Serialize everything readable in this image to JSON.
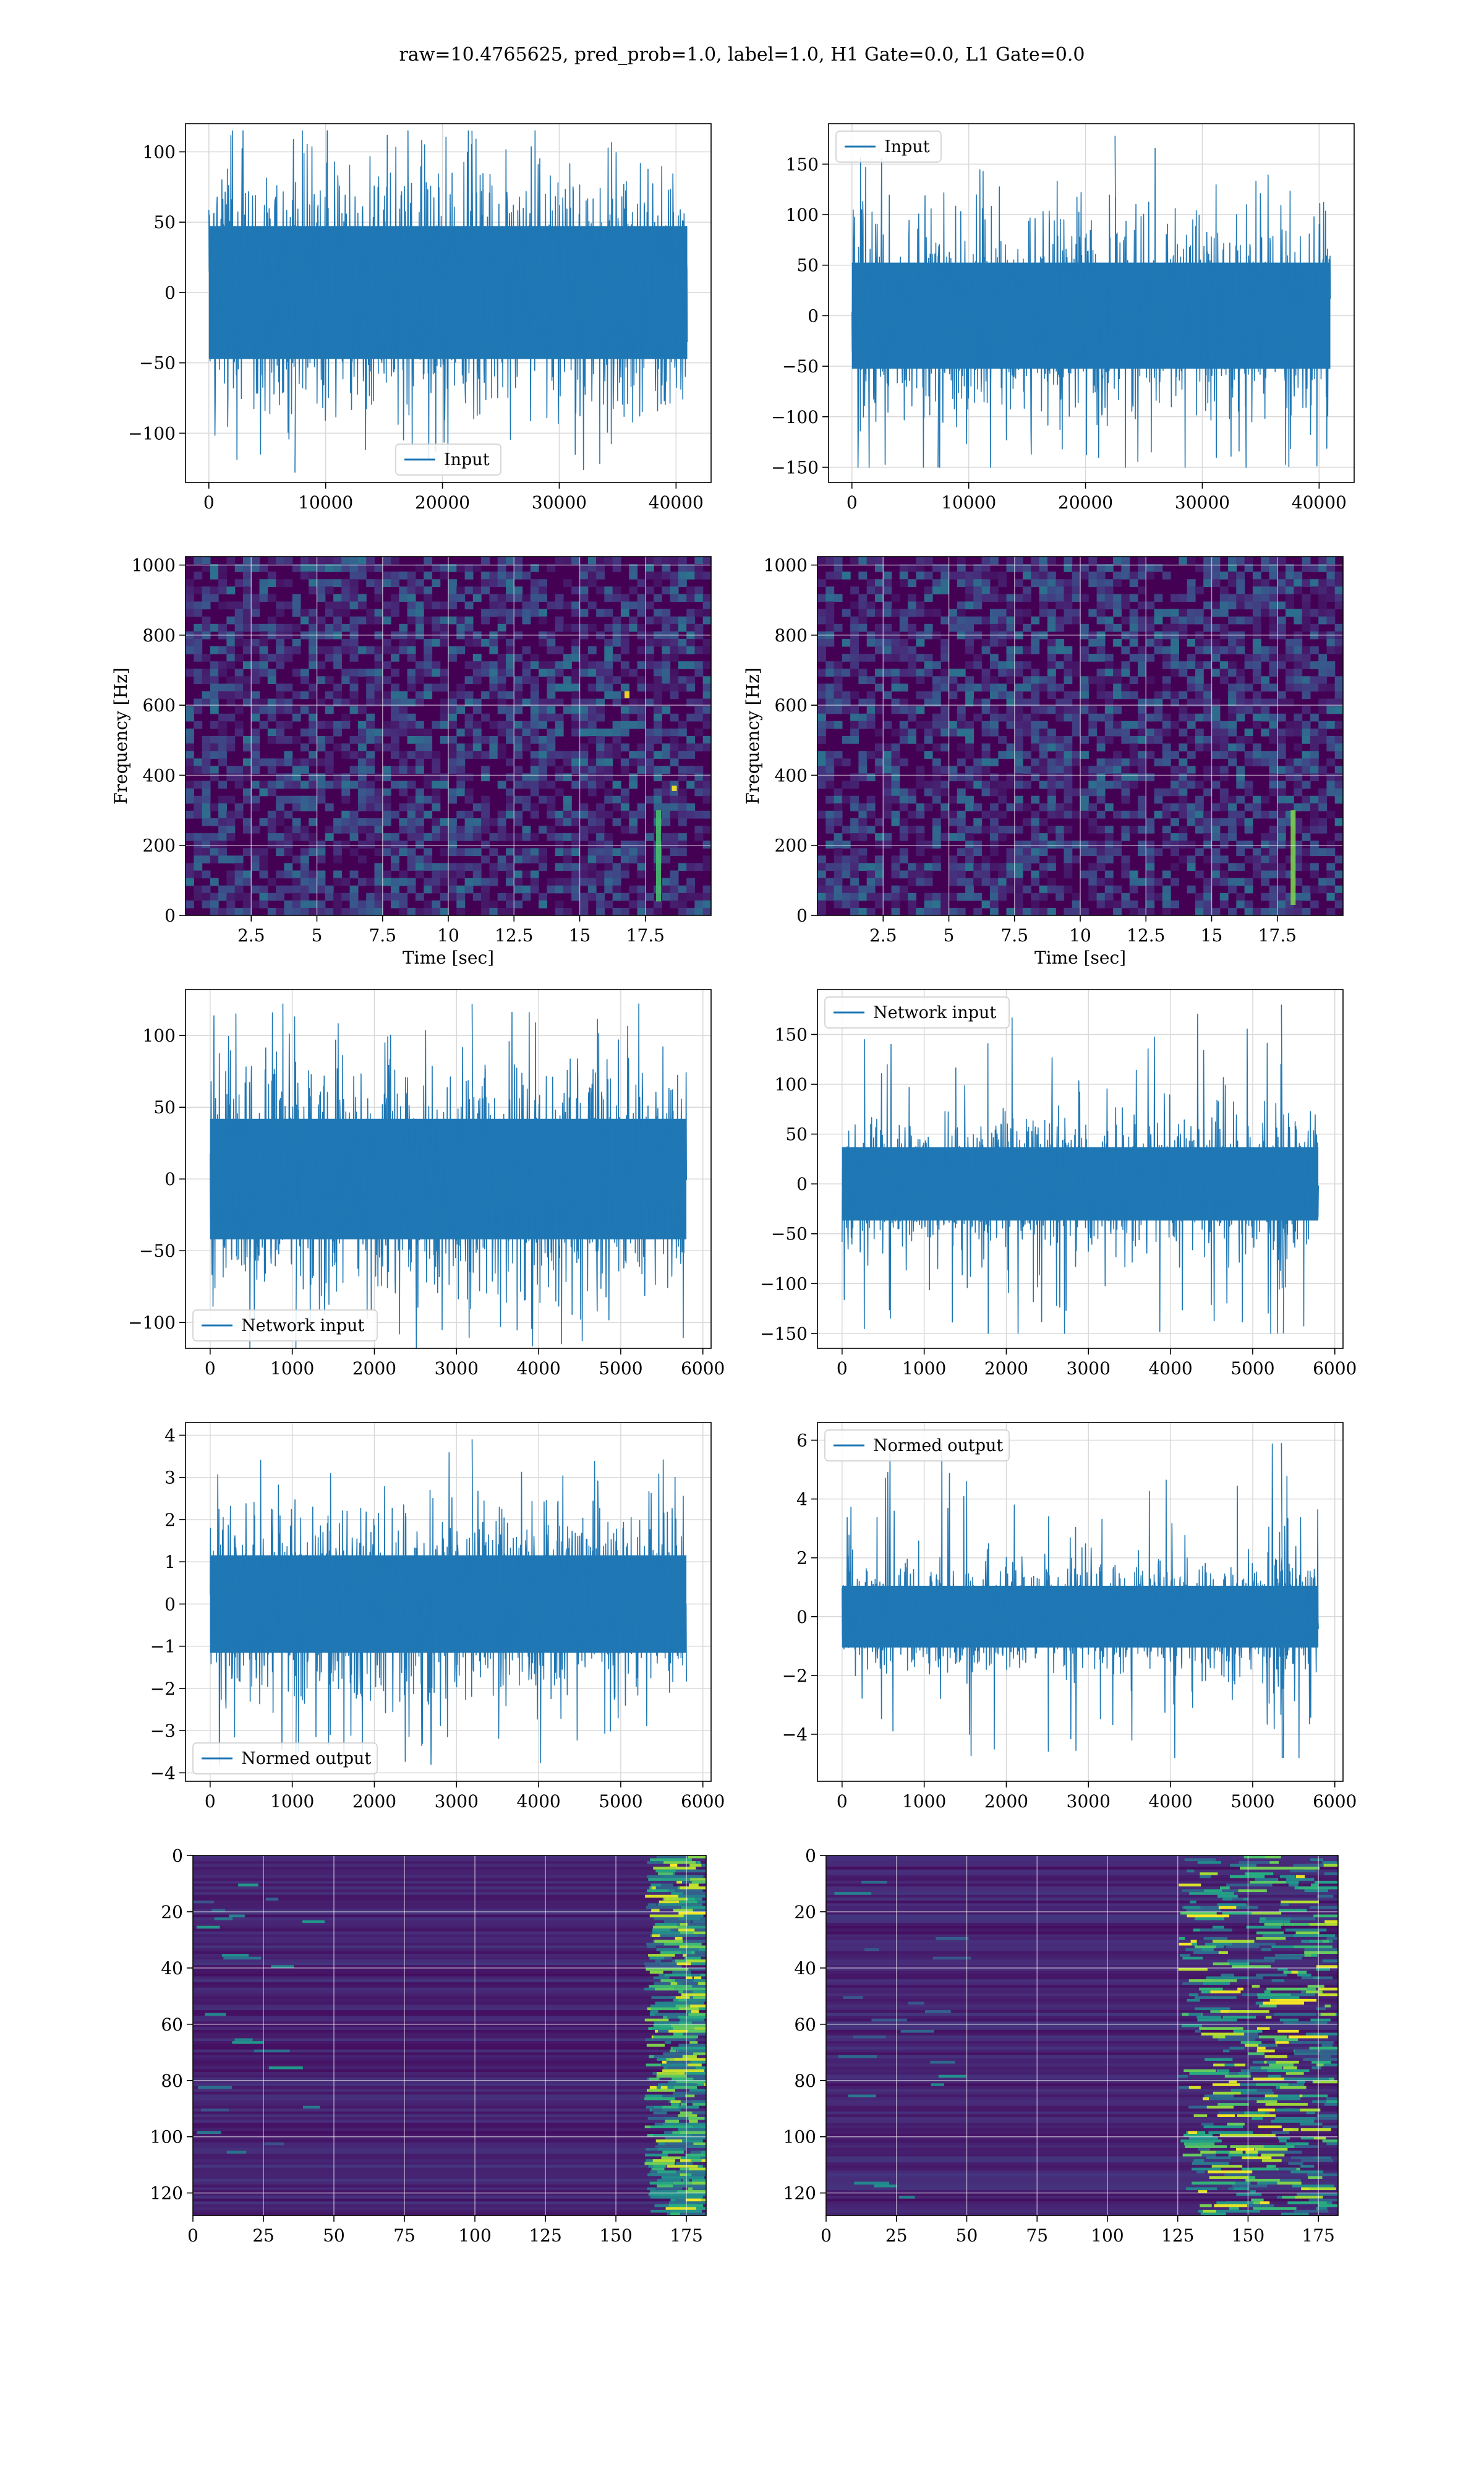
{
  "figure": {
    "suptitle": "raw=10.4765625, pred_prob=1.0, label=1.0, H1 Gate=0.0, L1 Gate=0.0",
    "colors": {
      "line": "#1f77b4",
      "grid": "#d9d9d9",
      "viridis": [
        "#440154",
        "#472c7a",
        "#3b518b",
        "#2c718e",
        "#21908d",
        "#27ad81",
        "#5cc863",
        "#aadc32",
        "#fde725"
      ]
    }
  },
  "chart_data": [
    {
      "type": "line",
      "legend": "Input",
      "legend_loc": "lower center",
      "xlim": [
        -2000,
        43000
      ],
      "ylim": [
        -135,
        120
      ],
      "xticks": [
        0,
        10000,
        20000,
        30000,
        40000
      ],
      "yticks": [
        -100,
        -50,
        0,
        50,
        100
      ],
      "x_range": [
        0,
        40960
      ],
      "band": [
        -45,
        45
      ],
      "spike_max": 115,
      "spike_min": -128,
      "grid": true
    },
    {
      "type": "line",
      "legend": "Input",
      "legend_loc": "upper left",
      "xlim": [
        -2000,
        43000
      ],
      "ylim": [
        -165,
        190
      ],
      "xticks": [
        0,
        10000,
        20000,
        30000,
        40000
      ],
      "yticks": [
        -150,
        -100,
        -50,
        0,
        50,
        100,
        150
      ],
      "x_range": [
        0,
        40960
      ],
      "band": [
        -50,
        50
      ],
      "spike_max": 178,
      "spike_min": -150,
      "grid": true
    },
    {
      "type": "heatmap",
      "xlabel": "Time [sec]",
      "ylabel": "Frequency [Hz]",
      "xlim": [
        0,
        20
      ],
      "ylim": [
        0,
        1024
      ],
      "xticks": [
        2.5,
        5.0,
        7.5,
        10.0,
        12.5,
        15.0,
        17.5
      ],
      "yticks": [
        0,
        200,
        400,
        600,
        800,
        1000
      ],
      "colormap": "viridis",
      "hotspots": [
        {
          "t": 18.0,
          "f_low": 40,
          "f_high": 300,
          "level": 0.7
        },
        {
          "t": 16.8,
          "f_low": 620,
          "f_high": 640,
          "level": 1.0
        },
        {
          "t": 18.6,
          "f_low": 355,
          "f_high": 370,
          "level": 1.0
        }
      ]
    },
    {
      "type": "heatmap",
      "xlabel": "Time [sec]",
      "ylabel": "Frequency [Hz]",
      "xlim": [
        0,
        20
      ],
      "ylim": [
        0,
        1024
      ],
      "xticks": [
        2.5,
        5.0,
        7.5,
        10.0,
        12.5,
        15.0,
        17.5
      ],
      "yticks": [
        0,
        200,
        400,
        600,
        800,
        1000
      ],
      "colormap": "viridis",
      "hotspots": [
        {
          "t": 18.1,
          "f_low": 30,
          "f_high": 300,
          "level": 0.8
        }
      ]
    },
    {
      "type": "line",
      "legend": "Network input",
      "legend_loc": "lower left",
      "xlim": [
        -300,
        6100
      ],
      "ylim": [
        -118,
        132
      ],
      "xticks": [
        0,
        1000,
        2000,
        3000,
        4000,
        5000,
        6000
      ],
      "yticks": [
        -100,
        -50,
        0,
        50,
        100
      ],
      "x_range": [
        0,
        5800
      ],
      "band": [
        -40,
        40
      ],
      "spike_max": 122,
      "spike_min": -120,
      "grid": true
    },
    {
      "type": "line",
      "legend": "Network input",
      "legend_loc": "upper left",
      "xlim": [
        -300,
        6100
      ],
      "ylim": [
        -165,
        195
      ],
      "xticks": [
        0,
        1000,
        2000,
        3000,
        4000,
        5000,
        6000
      ],
      "yticks": [
        -150,
        -100,
        -50,
        0,
        50,
        100,
        150
      ],
      "x_range": [
        0,
        5800
      ],
      "band": [
        -35,
        35
      ],
      "spike_max": 180,
      "spike_min": -150,
      "burst_x": 5350,
      "grid": true
    },
    {
      "type": "line",
      "legend": "Normed output",
      "legend_loc": "lower left",
      "xlim": [
        -300,
        6100
      ],
      "ylim": [
        -4.2,
        4.3
      ],
      "xticks": [
        0,
        1000,
        2000,
        3000,
        4000,
        5000,
        6000
      ],
      "yticks": [
        -4,
        -3,
        -2,
        -1,
        0,
        1,
        2,
        3,
        4
      ],
      "x_range": [
        0,
        5800
      ],
      "band": [
        -1.1,
        1.1
      ],
      "spike_max": 3.9,
      "spike_min": -3.8,
      "grid": true
    },
    {
      "type": "line",
      "legend": "Normed output",
      "legend_loc": "upper left",
      "xlim": [
        -300,
        6100
      ],
      "ylim": [
        -5.6,
        6.6
      ],
      "xticks": [
        0,
        1000,
        2000,
        3000,
        4000,
        5000,
        6000
      ],
      "yticks": [
        -4,
        -2,
        0,
        2,
        4,
        6
      ],
      "x_range": [
        0,
        5800
      ],
      "band": [
        -1.0,
        1.0
      ],
      "spike_max": 5.9,
      "spike_min": -4.8,
      "burst_x": 5350,
      "grid": true
    },
    {
      "type": "heatmap",
      "xlim": [
        0,
        182
      ],
      "ylim": [
        128,
        0
      ],
      "xticks": [
        0,
        25,
        50,
        75,
        100,
        125,
        150,
        175
      ],
      "yticks": [
        0,
        20,
        40,
        60,
        80,
        100,
        120
      ],
      "colormap": "viridis",
      "active_from": 160
    },
    {
      "type": "heatmap",
      "xlim": [
        0,
        182
      ],
      "ylim": [
        128,
        0
      ],
      "xticks": [
        0,
        25,
        50,
        75,
        100,
        125,
        150,
        175
      ],
      "yticks": [
        0,
        20,
        40,
        60,
        80,
        100,
        120
      ],
      "colormap": "viridis",
      "active_from": 125
    }
  ]
}
